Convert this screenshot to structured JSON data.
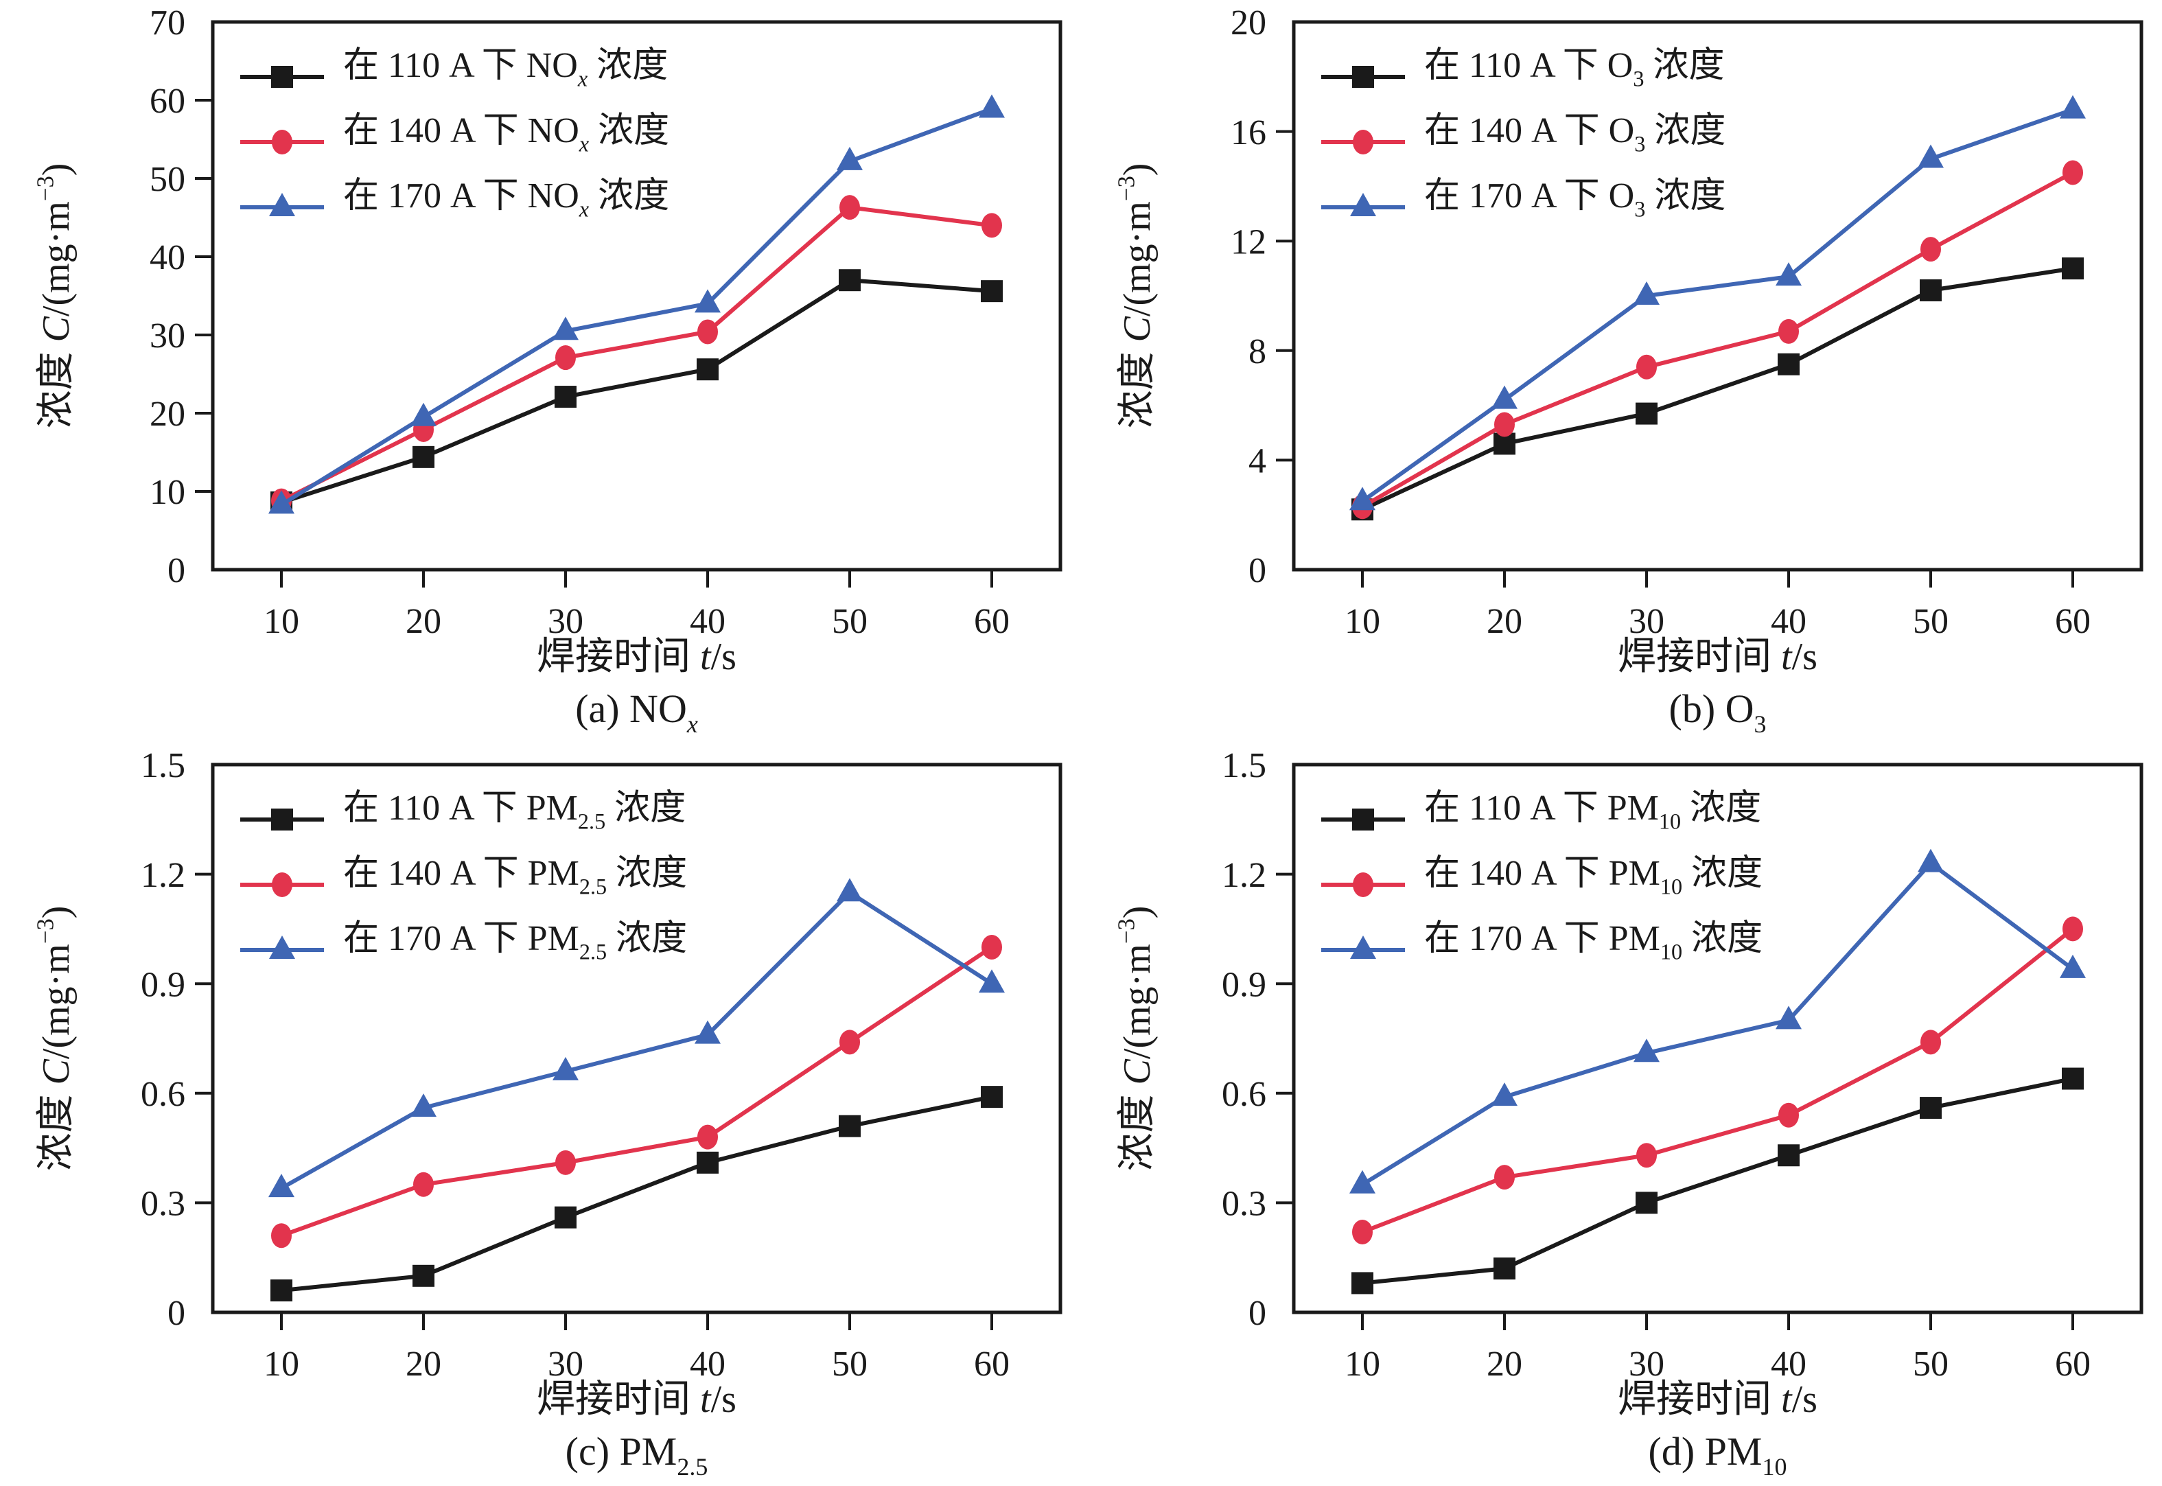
{
  "page": {
    "background": "#ffffff",
    "description": "Four line charts of welding fume pollutant concentrations vs welding time at three welding currents"
  },
  "axis_common": {
    "x_label_text": "焊接时间 t/s",
    "x_label_parts": [
      {
        "t": "焊接时间 "
      },
      {
        "t": "t",
        "i": true
      },
      {
        "t": "/s"
      }
    ],
    "y_label_text": "浓度 C/(mg·m−3)",
    "y_label_parts": [
      {
        "t": "浓度 "
      },
      {
        "t": "C",
        "i": true
      },
      {
        "t": "/(mg·m"
      },
      {
        "t": "−3",
        "sup": true
      },
      {
        "t": ")"
      }
    ],
    "x_tick_labels": [
      "10",
      "20",
      "30",
      "40",
      "50",
      "60"
    ]
  },
  "colors": {
    "series_110A": "#1a1a1a",
    "series_140A": "#e2344d",
    "series_170A": "#3f66b4",
    "axis": "#1a1a1a"
  },
  "chart_data": [
    {
      "id": "a",
      "type": "line",
      "caption_text": "(a) NOx",
      "caption_parts": [
        {
          "t": "(a) NO"
        },
        {
          "t": "x",
          "sub": true,
          "i": true
        }
      ],
      "xlabel": "焊接时间 t/s",
      "ylabel": "浓度 C/(mg·m−3)",
      "x": [
        10,
        20,
        30,
        40,
        50,
        60
      ],
      "ylim": [
        0,
        70
      ],
      "yticks": [
        0,
        10,
        20,
        30,
        40,
        50,
        60,
        70
      ],
      "ytick_labels": [
        "0",
        "10",
        "20",
        "30",
        "40",
        "50",
        "60",
        "70"
      ],
      "grid": false,
      "legend_position": "top-left",
      "series": [
        {
          "name": "在 110 A 下 NOx 浓度",
          "label_parts": [
            {
              "t": "在 110 A 下 NO"
            },
            {
              "t": "x",
              "sub": true,
              "i": true
            },
            {
              "t": " 浓度"
            }
          ],
          "color": "#1a1a1a",
          "marker": "square",
          "values": [
            8.6,
            14.4,
            22.1,
            25.6,
            37.0,
            35.6
          ]
        },
        {
          "name": "在 140 A 下 NOx 浓度",
          "label_parts": [
            {
              "t": "在 140 A 下 NO"
            },
            {
              "t": "x",
              "sub": true,
              "i": true
            },
            {
              "t": " 浓度"
            }
          ],
          "color": "#e2344d",
          "marker": "circle",
          "values": [
            8.8,
            17.9,
            27.1,
            30.4,
            46.3,
            44.0
          ]
        },
        {
          "name": "在 170 A 下 NOx 浓度",
          "label_parts": [
            {
              "t": "在 170 A 下 NO"
            },
            {
              "t": "x",
              "sub": true,
              "i": true
            },
            {
              "t": " 浓度"
            }
          ],
          "color": "#3f66b4",
          "marker": "triangle",
          "values": [
            8.3,
            19.5,
            30.5,
            34.0,
            52.2,
            58.9
          ]
        }
      ]
    },
    {
      "id": "b",
      "type": "line",
      "caption_text": "(b) O3",
      "caption_parts": [
        {
          "t": "(b) O"
        },
        {
          "t": "3",
          "sub": true
        }
      ],
      "xlabel": "焊接时间 t/s",
      "ylabel": "浓度 C/(mg·m−3)",
      "x": [
        10,
        20,
        30,
        40,
        50,
        60
      ],
      "ylim": [
        0,
        20
      ],
      "yticks": [
        0,
        4,
        8,
        12,
        16,
        20
      ],
      "ytick_labels": [
        "0",
        "4",
        "8",
        "12",
        "16",
        "20"
      ],
      "grid": false,
      "legend_position": "top-left",
      "series": [
        {
          "name": "在 110 A 下 O3 浓度",
          "label_parts": [
            {
              "t": "在 110 A 下 O"
            },
            {
              "t": "3",
              "sub": true
            },
            {
              "t": " 浓度"
            }
          ],
          "color": "#1a1a1a",
          "marker": "square",
          "values": [
            2.2,
            4.6,
            5.7,
            7.5,
            10.2,
            11.0
          ]
        },
        {
          "name": "在 140 A 下 O3 浓度",
          "label_parts": [
            {
              "t": "在 140 A 下 O"
            },
            {
              "t": "3",
              "sub": true
            },
            {
              "t": " 浓度"
            }
          ],
          "color": "#e2344d",
          "marker": "circle",
          "values": [
            2.3,
            5.3,
            7.4,
            8.7,
            11.7,
            14.5
          ]
        },
        {
          "name": "在 170 A 下 O3 浓度",
          "label_parts": [
            {
              "t": "在 170 A 下 O"
            },
            {
              "t": "3",
              "sub": true
            },
            {
              "t": " 浓度"
            }
          ],
          "color": "#3f66b4",
          "marker": "triangle",
          "values": [
            2.5,
            6.2,
            10.0,
            10.7,
            15.0,
            16.8
          ]
        }
      ]
    },
    {
      "id": "c",
      "type": "line",
      "caption_text": "(c) PM2.5",
      "caption_parts": [
        {
          "t": "(c) PM"
        },
        {
          "t": "2.5",
          "sub": true
        }
      ],
      "xlabel": "焊接时间 t/s",
      "ylabel": "浓度 C/(mg·m−3)",
      "x": [
        10,
        20,
        30,
        40,
        50,
        60
      ],
      "ylim": [
        0,
        1.5
      ],
      "yticks": [
        0,
        0.3,
        0.6,
        0.9,
        1.2,
        1.5
      ],
      "ytick_labels": [
        "0",
        "0.3",
        "0.6",
        "0.9",
        "1.2",
        "1.5"
      ],
      "grid": false,
      "legend_position": "top-left",
      "series": [
        {
          "name": "在 110 A 下 PM2.5 浓度",
          "label_parts": [
            {
              "t": "在 110 A 下 PM"
            },
            {
              "t": "2.5",
              "sub": true
            },
            {
              "t": " 浓度"
            }
          ],
          "color": "#1a1a1a",
          "marker": "square",
          "values": [
            0.06,
            0.1,
            0.26,
            0.41,
            0.51,
            0.59
          ]
        },
        {
          "name": "在 140 A 下 PM2.5 浓度",
          "label_parts": [
            {
              "t": "在 140 A 下 PM"
            },
            {
              "t": "2.5",
              "sub": true
            },
            {
              "t": " 浓度"
            }
          ],
          "color": "#e2344d",
          "marker": "circle",
          "values": [
            0.21,
            0.35,
            0.41,
            0.48,
            0.74,
            1.0
          ]
        },
        {
          "name": "在 170 A 下 PM2.5 浓度",
          "label_parts": [
            {
              "t": "在 170 A 下 PM"
            },
            {
              "t": "2.5",
              "sub": true
            },
            {
              "t": " 浓度"
            }
          ],
          "color": "#3f66b4",
          "marker": "triangle",
          "values": [
            0.34,
            0.56,
            0.66,
            0.76,
            1.15,
            0.9
          ]
        }
      ]
    },
    {
      "id": "d",
      "type": "line",
      "caption_text": "(d) PM10",
      "caption_parts": [
        {
          "t": "(d) PM"
        },
        {
          "t": "10",
          "sub": true
        }
      ],
      "xlabel": "焊接时间 t/s",
      "ylabel": "浓度 C/(mg·m−3)",
      "x": [
        10,
        20,
        30,
        40,
        50,
        60
      ],
      "ylim": [
        0,
        1.5
      ],
      "yticks": [
        0,
        0.3,
        0.6,
        0.9,
        1.2,
        1.5
      ],
      "ytick_labels": [
        "0",
        "0.3",
        "0.6",
        "0.9",
        "1.2",
        "1.5"
      ],
      "grid": false,
      "legend_position": "top-left",
      "series": [
        {
          "name": "在 110 A 下 PM10 浓度",
          "label_parts": [
            {
              "t": "在 110 A 下 PM"
            },
            {
              "t": "10",
              "sub": true
            },
            {
              "t": " 浓度"
            }
          ],
          "color": "#1a1a1a",
          "marker": "square",
          "values": [
            0.08,
            0.12,
            0.3,
            0.43,
            0.56,
            0.64
          ]
        },
        {
          "name": "在 140 A 下 PM10 浓度",
          "label_parts": [
            {
              "t": "在 140 A 下 PM"
            },
            {
              "t": "10",
              "sub": true
            },
            {
              "t": " 浓度"
            }
          ],
          "color": "#e2344d",
          "marker": "circle",
          "values": [
            0.22,
            0.37,
            0.43,
            0.54,
            0.74,
            1.05
          ]
        },
        {
          "name": "在 170 A 下 PM10 浓度",
          "label_parts": [
            {
              "t": "在 170 A 下 PM"
            },
            {
              "t": "10",
              "sub": true
            },
            {
              "t": " 浓度"
            }
          ],
          "color": "#3f66b4",
          "marker": "triangle",
          "values": [
            0.35,
            0.59,
            0.71,
            0.8,
            1.23,
            0.94
          ]
        }
      ]
    }
  ]
}
